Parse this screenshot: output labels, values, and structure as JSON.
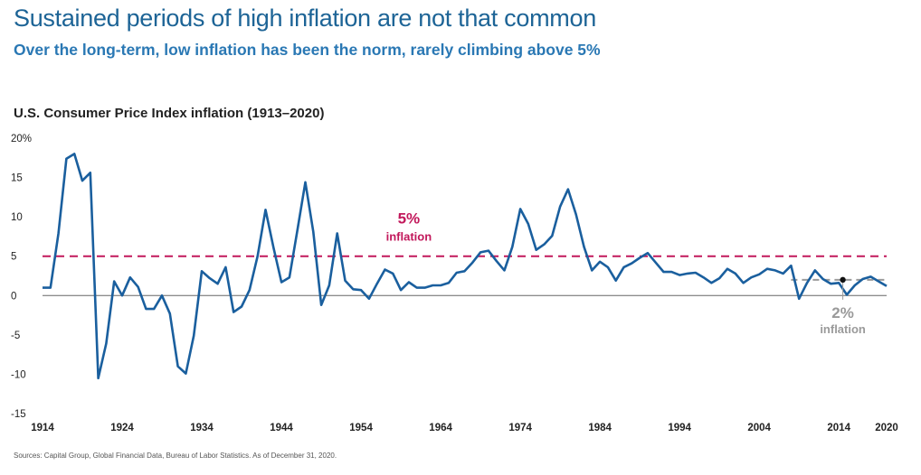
{
  "header": {
    "title": "Sustained periods of high inflation are not that common",
    "subtitle": "Over the long-term, low inflation has been the norm, rarely climbing above 5%"
  },
  "footer": {
    "sources": "Sources: Capital Group, Global Financial Data, Bureau of Labor Statistics. As of December 31, 2020."
  },
  "chart_data": {
    "type": "line",
    "title": "U.S. Consumer Price Index inflation (1913–2020)",
    "xlabel": "",
    "ylabel": "",
    "ylim": [
      -15,
      20
    ],
    "xlim": [
      1914,
      2020
    ],
    "y_ticks": [
      "20%",
      "15",
      "10",
      "5",
      "0",
      "-5",
      "-10",
      "-15"
    ],
    "y_tick_values": [
      20,
      15,
      10,
      5,
      0,
      -5,
      -10,
      -15
    ],
    "x_ticks": [
      "1914",
      "1924",
      "1934",
      "1944",
      "1954",
      "1964",
      "1974",
      "1984",
      "1994",
      "2004",
      "2014",
      "2020"
    ],
    "x_tick_values": [
      1914,
      1924,
      1934,
      1944,
      1954,
      1964,
      1974,
      1984,
      1994,
      2004,
      2014,
      2020
    ],
    "series": [
      {
        "color": "#1a5f9e",
        "x": [
          1914,
          1915,
          1916,
          1917,
          1918,
          1919,
          1920,
          1921,
          1922,
          1923,
          1924,
          1925,
          1926,
          1927,
          1928,
          1929,
          1930,
          1931,
          1932,
          1933,
          1934,
          1935,
          1936,
          1937,
          1938,
          1939,
          1940,
          1941,
          1942,
          1943,
          1944,
          1945,
          1946,
          1947,
          1948,
          1949,
          1950,
          1951,
          1952,
          1953,
          1954,
          1955,
          1956,
          1957,
          1958,
          1959,
          1960,
          1961,
          1962,
          1963,
          1964,
          1965,
          1966,
          1967,
          1968,
          1969,
          1970,
          1971,
          1972,
          1973,
          1974,
          1975,
          1976,
          1977,
          1978,
          1979,
          1980,
          1981,
          1982,
          1983,
          1984,
          1985,
          1986,
          1987,
          1988,
          1989,
          1990,
          1991,
          1992,
          1993,
          1994,
          1995,
          1996,
          1997,
          1998,
          1999,
          2000,
          2001,
          2002,
          2003,
          2004,
          2005,
          2006,
          2007,
          2008,
          2009,
          2010,
          2011,
          2012,
          2013,
          2014,
          2015,
          2016,
          2017,
          2018,
          2019,
          2020
        ],
        "values": [
          1.0,
          1.0,
          7.9,
          17.4,
          18.0,
          14.6,
          15.6,
          -10.5,
          -6.1,
          1.8,
          0.0,
          2.3,
          1.1,
          -1.7,
          -1.7,
          0.0,
          -2.3,
          -9.0,
          -9.9,
          -5.1,
          3.1,
          2.2,
          1.5,
          3.6,
          -2.1,
          -1.4,
          0.7,
          5.0,
          10.9,
          6.1,
          1.7,
          2.3,
          8.3,
          14.4,
          8.1,
          -1.2,
          1.3,
          7.9,
          1.9,
          0.8,
          0.7,
          -0.4,
          1.5,
          3.3,
          2.8,
          0.7,
          1.7,
          1.0,
          1.0,
          1.3,
          1.3,
          1.6,
          2.9,
          3.1,
          4.2,
          5.5,
          5.7,
          4.4,
          3.2,
          6.2,
          11.0,
          9.1,
          5.8,
          6.5,
          7.6,
          11.3,
          13.5,
          10.3,
          6.2,
          3.2,
          4.3,
          3.6,
          1.9,
          3.6,
          4.1,
          4.8,
          5.4,
          4.2,
          3.0,
          3.0,
          2.6,
          2.8,
          2.9,
          2.3,
          1.6,
          2.2,
          3.4,
          2.8,
          1.6,
          2.3,
          2.7,
          3.4,
          3.2,
          2.8,
          3.8,
          -0.4,
          1.6,
          3.2,
          2.1,
          1.5,
          1.6,
          0.1,
          1.3,
          2.1,
          2.4,
          1.8,
          1.2
        ]
      }
    ],
    "reference_lines": [
      {
        "value": 5,
        "color": "#c2185b",
        "label_value": "5%",
        "label_text": "inflation",
        "start_year": 1914,
        "end_year": 2020
      },
      {
        "value": 2,
        "color": "#9a9a9a",
        "label_value": "2%",
        "label_text": "inflation",
        "start_year": 2008,
        "end_year": 2020
      }
    ],
    "grid": false,
    "legend": "none"
  },
  "colors": {
    "title": "#1d6496",
    "subtitle": "#2a78b4",
    "line": "#1a5f9e",
    "five_pct": "#c2185b",
    "two_pct": "#9a9a9a",
    "axis": "#666666"
  }
}
